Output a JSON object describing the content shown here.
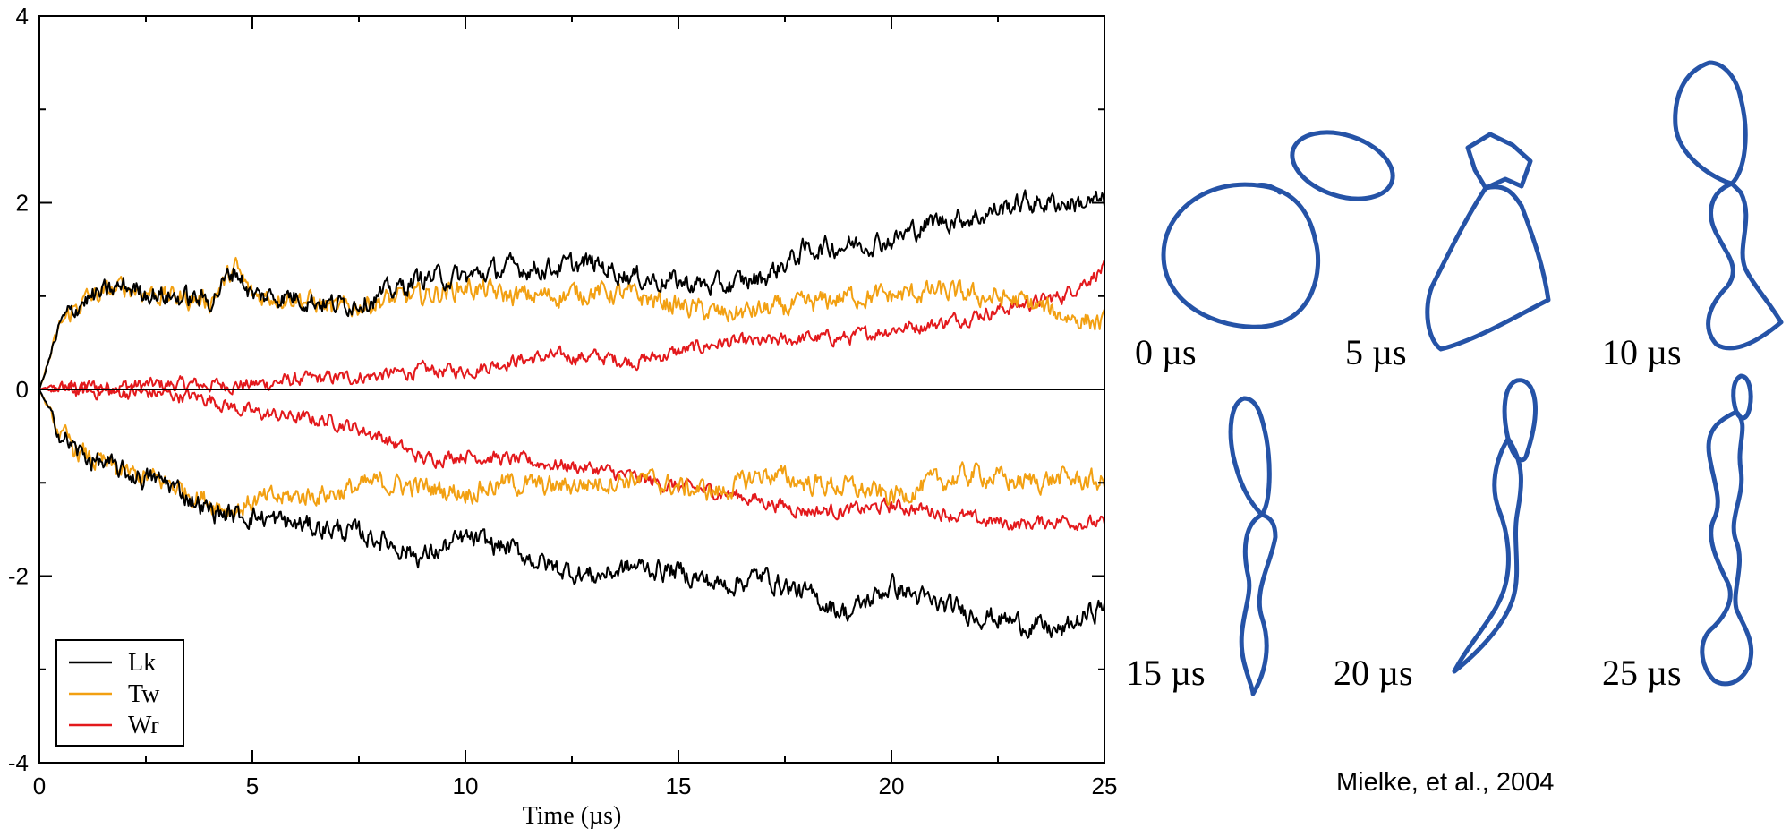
{
  "chart_data": {
    "type": "line",
    "xlabel": "Time (µs)",
    "ylabel": "",
    "xlim": [
      0,
      25
    ],
    "ylim": [
      -4,
      4
    ],
    "x_ticks": [
      "0",
      "5",
      "10",
      "15",
      "20",
      "25"
    ],
    "y_ticks": [
      "-4",
      "-2",
      "0",
      "2",
      "4"
    ],
    "grid": false,
    "legend_position": "bottom-left",
    "reference_line": 0,
    "x": [
      0,
      0.5,
      1,
      2,
      3,
      4,
      4.6,
      5,
      6,
      7,
      8,
      9,
      10,
      11,
      12,
      13,
      14,
      15,
      16,
      17,
      18,
      19,
      20,
      21,
      22,
      23,
      24,
      25
    ],
    "series": [
      {
        "name": "Lk",
        "group": "upper",
        "values": [
          0,
          0.7,
          0.95,
          1.1,
          1.0,
          0.95,
          1.3,
          1.0,
          1.0,
          0.9,
          1.0,
          1.2,
          1.2,
          1.3,
          1.3,
          1.35,
          1.2,
          1.15,
          1.1,
          1.2,
          1.5,
          1.55,
          1.6,
          1.8,
          1.85,
          2.0,
          2.0,
          2.0
        ]
      },
      {
        "name": "Tw",
        "group": "upper",
        "values": [
          0,
          0.7,
          0.95,
          1.1,
          1.0,
          0.95,
          1.3,
          1.0,
          1.0,
          0.85,
          0.95,
          1.0,
          1.1,
          1.0,
          1.0,
          1.05,
          1.0,
          0.9,
          0.8,
          0.85,
          0.9,
          1.0,
          1.0,
          1.05,
          1.0,
          0.95,
          0.8,
          0.7
        ]
      },
      {
        "name": "Wr",
        "group": "upper",
        "values": [
          0,
          0.02,
          0.03,
          0.04,
          0.05,
          0.05,
          0.05,
          0.05,
          0.1,
          0.12,
          0.15,
          0.2,
          0.2,
          0.3,
          0.35,
          0.35,
          0.3,
          0.4,
          0.5,
          0.5,
          0.55,
          0.55,
          0.65,
          0.7,
          0.8,
          0.9,
          1.0,
          1.3
        ]
      },
      {
        "name": "Lk",
        "group": "lower",
        "values": [
          0,
          -0.5,
          -0.7,
          -0.9,
          -1.0,
          -1.3,
          -1.35,
          -1.35,
          -1.45,
          -1.5,
          -1.6,
          -1.8,
          -1.6,
          -1.7,
          -1.9,
          -2.0,
          -1.9,
          -1.95,
          -2.1,
          -2.0,
          -2.2,
          -2.4,
          -2.1,
          -2.3,
          -2.4,
          -2.5,
          -2.6,
          -2.3
        ]
      },
      {
        "name": "Tw",
        "group": "lower",
        "values": [
          0,
          -0.5,
          -0.7,
          -0.9,
          -1.0,
          -1.2,
          -1.3,
          -1.2,
          -1.15,
          -1.1,
          -1.0,
          -1.05,
          -1.1,
          -1.0,
          -1.05,
          -1.0,
          -0.95,
          -1.05,
          -1.1,
          -0.9,
          -1.0,
          -1.05,
          -1.15,
          -1.0,
          -0.9,
          -1.0,
          -0.95,
          -1.0
        ]
      },
      {
        "name": "Wr",
        "group": "lower",
        "values": [
          0,
          0,
          -0.02,
          -0.03,
          -0.05,
          -0.1,
          -0.2,
          -0.25,
          -0.3,
          -0.35,
          -0.5,
          -0.75,
          -0.7,
          -0.75,
          -0.8,
          -0.85,
          -0.95,
          -1.05,
          -1.1,
          -1.2,
          -1.3,
          -1.3,
          -1.25,
          -1.3,
          -1.4,
          -1.45,
          -1.4,
          -1.45
        ]
      }
    ],
    "colors": {
      "Lk": "#000000",
      "Tw": "#f2a012",
      "Wr": "#e3191c"
    }
  },
  "legend": [
    {
      "name": "Lk",
      "color": "#000000"
    },
    {
      "name": "Tw",
      "color": "#f2a012"
    },
    {
      "name": "Wr",
      "color": "#e3191c"
    }
  ],
  "snapshots": {
    "color": "#2553a7",
    "items": [
      {
        "label": "0 µs"
      },
      {
        "label": "5 µs"
      },
      {
        "label": "10 µs"
      },
      {
        "label": "15 µs"
      },
      {
        "label": "20 µs"
      },
      {
        "label": "25 µs"
      }
    ]
  },
  "citation": "Mielke, et al., 2004"
}
